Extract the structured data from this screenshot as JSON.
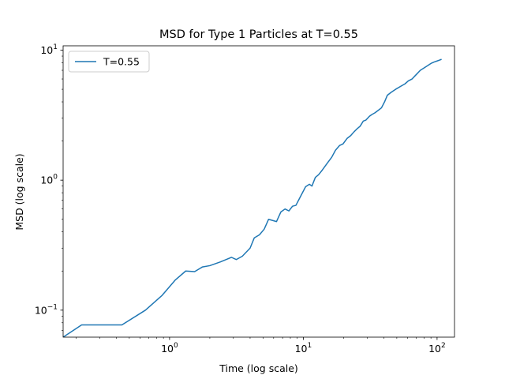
{
  "chart_data": {
    "type": "line",
    "title": "MSD for Type 1 Particles at T=0.55",
    "xlabel": "Time (log scale)",
    "ylabel": "MSD (log scale)",
    "xscale": "log",
    "yscale": "log",
    "xlim": [
      0.16,
      135
    ],
    "ylim": [
      0.062,
      10.8
    ],
    "x_ticks": [
      {
        "value": 1,
        "base": "10",
        "exp": "0"
      },
      {
        "value": 10,
        "base": "10",
        "exp": "1"
      },
      {
        "value": 100,
        "base": "10",
        "exp": "2"
      }
    ],
    "y_ticks": [
      {
        "value": 0.1,
        "base": "10",
        "exp": "−1"
      },
      {
        "value": 1,
        "base": "10",
        "exp": "0"
      },
      {
        "value": 10,
        "base": "10",
        "exp": "1"
      }
    ],
    "grid": false,
    "legend": {
      "position": "top-left"
    },
    "colors": {
      "line": "#1f77b4"
    },
    "series": [
      {
        "name": "T=0.55",
        "x": [
          0.16,
          0.22,
          0.44,
          0.66,
          0.88,
          1.1,
          1.32,
          1.54,
          1.76,
          2.0,
          2.4,
          2.9,
          3.15,
          3.5,
          4.0,
          4.3,
          4.7,
          5.1,
          5.5,
          6.3,
          6.8,
          7.3,
          7.8,
          8.3,
          8.8,
          9.6,
          10.4,
          11.1,
          11.6,
          12.3,
          13.0,
          13.9,
          15.1,
          16.3,
          17.4,
          18.7,
          19.8,
          21.3,
          22.6,
          23.9,
          25.4,
          26.6,
          28.1,
          29.4,
          31.2,
          32.6,
          34.4,
          36.4,
          38.4,
          40.5,
          42.5,
          45.5,
          49.0,
          54.0,
          57.5,
          61.0,
          65.0,
          70.0,
          75.0,
          80.0,
          85.0,
          90.0,
          95.0,
          100.0,
          105.0,
          108.0
        ],
        "y": [
          0.062,
          0.077,
          0.077,
          0.1,
          0.13,
          0.17,
          0.2,
          0.198,
          0.215,
          0.22,
          0.235,
          0.255,
          0.245,
          0.26,
          0.3,
          0.36,
          0.38,
          0.42,
          0.5,
          0.48,
          0.57,
          0.6,
          0.58,
          0.63,
          0.64,
          0.76,
          0.89,
          0.93,
          0.9,
          1.05,
          1.1,
          1.2,
          1.35,
          1.5,
          1.7,
          1.85,
          1.9,
          2.1,
          2.2,
          2.35,
          2.5,
          2.6,
          2.85,
          2.9,
          3.1,
          3.2,
          3.3,
          3.45,
          3.6,
          4.0,
          4.5,
          4.75,
          5.0,
          5.3,
          5.5,
          5.8,
          6.0,
          6.5,
          7.0,
          7.3,
          7.6,
          7.9,
          8.1,
          8.25,
          8.4,
          8.5
        ]
      }
    ]
  }
}
